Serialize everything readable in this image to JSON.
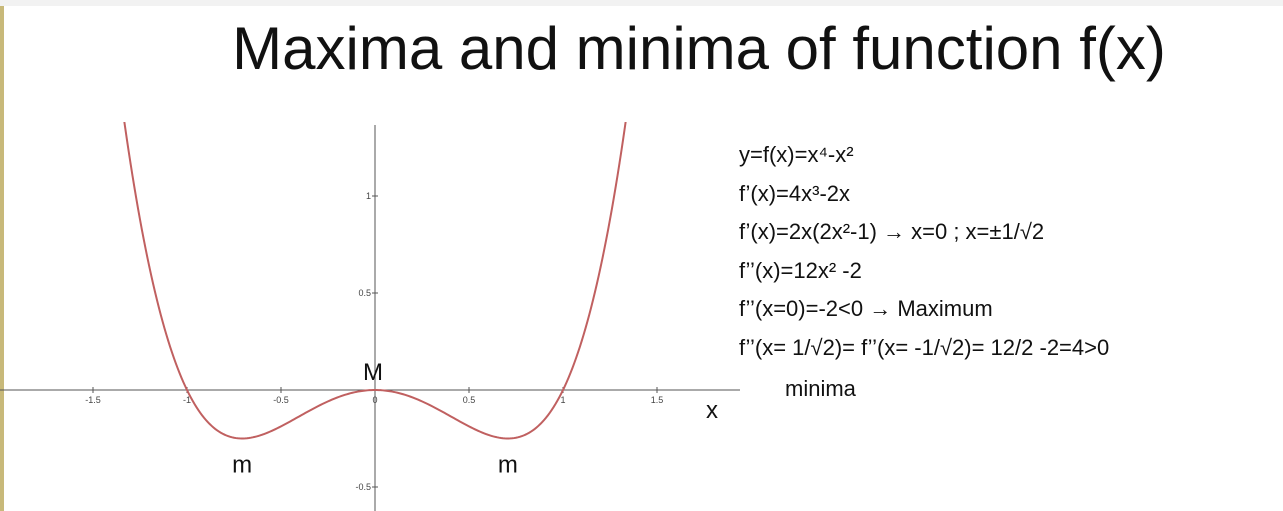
{
  "title": "Maxima and minima of function f(x)",
  "equations": [
    "y=f(x)=x⁴-x²",
    "f’(x)=4x³-2x",
    "f’(x)=2x(2x²-1) → x=0 ; x=±1/√2",
    "f’’(x)=12x² -2",
    "f’’(x=0)=-2<0 → Maximum",
    "f’’(x= 1/√2)= f’’(x= -1/√2)= 12/2 -2=4>0"
  ],
  "note": "minima",
  "chart_data": {
    "type": "line",
    "function": "x^4 - x^2",
    "xlabel": "x",
    "ylabel": "",
    "xlim": [
      -2,
      2
    ],
    "ylim": [
      -0.65,
      1.45
    ],
    "x_ticks": [
      -1.5,
      -1,
      -0.5,
      0,
      0.5,
      1,
      1.5
    ],
    "x_tick_labels": [
      "-1.5",
      "-1",
      "-0.5",
      "0",
      "0.5",
      "1",
      "1.5"
    ],
    "y_ticks": [
      1,
      0.5,
      -0.5
    ],
    "y_tick_labels": [
      "1",
      "0.5",
      "-0.5"
    ],
    "grid": false,
    "line_color": "#c06060",
    "series": [
      {
        "x": [
          -1.4,
          -1.3,
          -1.2,
          -1.1,
          -1.0,
          -0.9,
          -0.8,
          -0.707,
          -0.6,
          -0.5,
          -0.4,
          -0.3,
          -0.2,
          -0.1,
          0,
          0.1,
          0.2,
          0.3,
          0.4,
          0.5,
          0.6,
          0.707,
          0.8,
          0.9,
          1.0,
          1.1,
          1.2,
          1.3,
          1.4
        ],
        "y": [
          1.8816,
          1.1661,
          0.6336,
          0.2541,
          0,
          -0.1539,
          -0.2304,
          -0.25,
          -0.2304,
          -0.1875,
          -0.1344,
          -0.0819,
          -0.0384,
          -0.0099,
          0,
          -0.0099,
          -0.0384,
          -0.0819,
          -0.1344,
          -0.1875,
          -0.2304,
          -0.25,
          -0.2304,
          -0.1539,
          0,
          0.2541,
          0.6336,
          1.1661,
          1.8816
        ]
      }
    ],
    "annotations": [
      {
        "text": "M",
        "x": 0,
        "y": 0
      },
      {
        "text": "m",
        "x": -0.707,
        "y": -0.25
      },
      {
        "text": "m",
        "x": 0.707,
        "y": -0.25
      }
    ]
  }
}
